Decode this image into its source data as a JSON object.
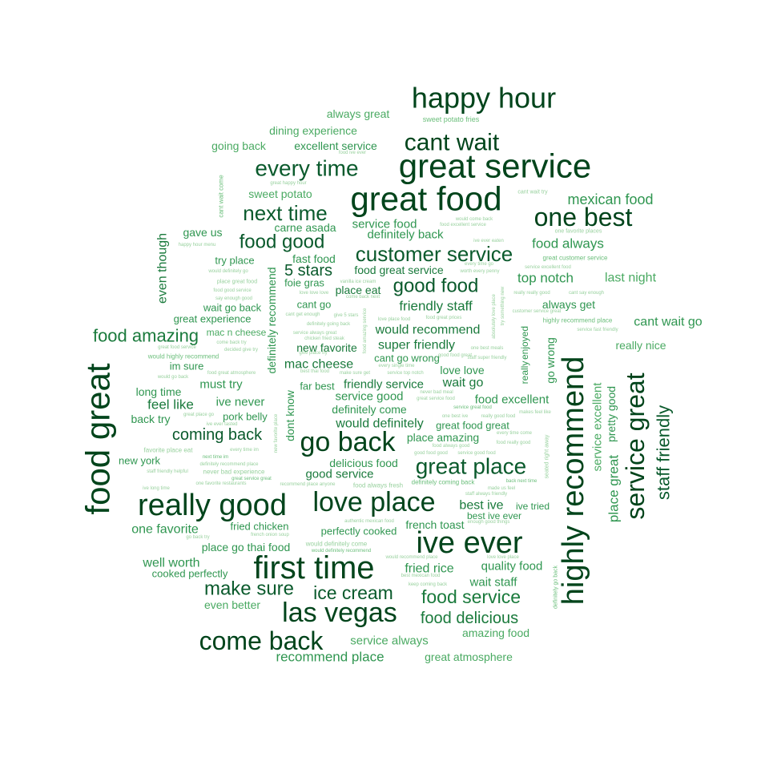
{
  "palette": {
    "level_1": "#00441b",
    "level_2": "#0a5a2c",
    "level_3": "#1a7a3c",
    "level_4": "#2f9650",
    "level_5": "#4aaa62",
    "level_6": "#6cbf7c",
    "level_7": "#98d19e"
  },
  "words": [
    {
      "text": "happy hour",
      "level": 1
    },
    {
      "text": "great service",
      "level": 1
    },
    {
      "text": "great food",
      "level": 1
    },
    {
      "text": "cant wait",
      "level": 1
    },
    {
      "text": "every time",
      "level": 2
    },
    {
      "text": "next time",
      "level": 2
    },
    {
      "text": "one best",
      "level": 1
    },
    {
      "text": "food good",
      "level": 2
    },
    {
      "text": "customer service",
      "level": 2
    },
    {
      "text": "good food",
      "level": 2
    },
    {
      "text": "food great",
      "level": 1
    },
    {
      "text": "really good",
      "level": 1
    },
    {
      "text": "love place",
      "level": 1
    },
    {
      "text": "go back",
      "level": 1
    },
    {
      "text": "great place",
      "level": 2
    },
    {
      "text": "ive ever",
      "level": 1
    },
    {
      "text": "first time",
      "level": 1
    },
    {
      "text": "las vegas",
      "level": 1
    },
    {
      "text": "come back",
      "level": 1
    },
    {
      "text": "highly recommend",
      "level": 1
    },
    {
      "text": "service great",
      "level": 1
    },
    {
      "text": "staff friendly",
      "level": 2
    },
    {
      "text": "place great",
      "level": 4
    },
    {
      "text": "pretty good",
      "level": 4
    },
    {
      "text": "service excellent",
      "level": 5
    },
    {
      "text": "food amazing",
      "level": 3
    },
    {
      "text": "make sure",
      "level": 2
    },
    {
      "text": "ice cream",
      "level": 2
    },
    {
      "text": "food service",
      "level": 3
    },
    {
      "text": "food delicious",
      "level": 3
    },
    {
      "text": "coming back",
      "level": 2
    },
    {
      "text": "5 stars",
      "level": 2
    },
    {
      "text": "mexican food",
      "level": 4
    },
    {
      "text": "food always",
      "level": 4
    },
    {
      "text": "top notch",
      "level": 4
    },
    {
      "text": "last night",
      "level": 5
    },
    {
      "text": "always get",
      "level": 4
    },
    {
      "text": "cant wait go",
      "level": 4
    },
    {
      "text": "really nice",
      "level": 5
    },
    {
      "text": "always great",
      "level": 5
    },
    {
      "text": "dining experience",
      "level": 5
    },
    {
      "text": "going back",
      "level": 5
    },
    {
      "text": "excellent service",
      "level": 4
    },
    {
      "text": "sweet potato",
      "level": 5
    },
    {
      "text": "sweet potato fries",
      "level": 6
    },
    {
      "text": "carne asada",
      "level": 4
    },
    {
      "text": "service food",
      "level": 4
    },
    {
      "text": "definitely back",
      "level": 4
    },
    {
      "text": "gave us",
      "level": 4
    },
    {
      "text": "even though",
      "level": 3
    },
    {
      "text": "try place",
      "level": 4
    },
    {
      "text": "fast food",
      "level": 4
    },
    {
      "text": "foie gras",
      "level": 4
    },
    {
      "text": "food great service",
      "level": 3
    },
    {
      "text": "friendly staff",
      "level": 3
    },
    {
      "text": "wait go back",
      "level": 4
    },
    {
      "text": "cant go",
      "level": 4
    },
    {
      "text": "place eat",
      "level": 3
    },
    {
      "text": "great experience",
      "level": 4
    },
    {
      "text": "would recommend",
      "level": 3
    },
    {
      "text": "mac n cheese",
      "level": 5
    },
    {
      "text": "super friendly",
      "level": 3
    },
    {
      "text": "new favorite",
      "level": 3
    },
    {
      "text": "cant go wrong",
      "level": 4
    },
    {
      "text": "mac cheese",
      "level": 3
    },
    {
      "text": "love love",
      "level": 4
    },
    {
      "text": "im sure",
      "level": 4
    },
    {
      "text": "must try",
      "level": 4
    },
    {
      "text": "far best",
      "level": 4
    },
    {
      "text": "friendly service",
      "level": 3
    },
    {
      "text": "wait go",
      "level": 3
    },
    {
      "text": "long time",
      "level": 4
    },
    {
      "text": "feel like",
      "level": 3
    },
    {
      "text": "ive never",
      "level": 4
    },
    {
      "text": "service good",
      "level": 4
    },
    {
      "text": "food excellent",
      "level": 4
    },
    {
      "text": "back try",
      "level": 4
    },
    {
      "text": "pork belly",
      "level": 4
    },
    {
      "text": "definitely come",
      "level": 4
    },
    {
      "text": "would definitely",
      "level": 3
    },
    {
      "text": "great food great",
      "level": 4
    },
    {
      "text": "place amazing",
      "level": 4
    },
    {
      "text": "new york",
      "level": 4
    },
    {
      "text": "delicious food",
      "level": 4
    },
    {
      "text": "good service",
      "level": 3
    },
    {
      "text": "best ive",
      "level": 3
    },
    {
      "text": "ive tried",
      "level": 4
    },
    {
      "text": "best ive ever",
      "level": 4
    },
    {
      "text": "one favorite",
      "level": 4
    },
    {
      "text": "fried chicken",
      "level": 4
    },
    {
      "text": "perfectly cooked",
      "level": 4
    },
    {
      "text": "french toast",
      "level": 4
    },
    {
      "text": "place go thai food",
      "level": 4
    },
    {
      "text": "well worth",
      "level": 4
    },
    {
      "text": "cooked perfectly",
      "level": 4
    },
    {
      "text": "fried rice",
      "level": 4
    },
    {
      "text": "quality food",
      "level": 4
    },
    {
      "text": "wait staff",
      "level": 4
    },
    {
      "text": "even better",
      "level": 5
    },
    {
      "text": "amazing food",
      "level": 5
    },
    {
      "text": "service always",
      "level": 5
    },
    {
      "text": "recommend place",
      "level": 4
    },
    {
      "text": "great atmosphere",
      "level": 5
    },
    {
      "text": "definitely recommend",
      "level": 4
    },
    {
      "text": "dont know",
      "level": 4
    },
    {
      "text": "enjoyed",
      "level": 4
    },
    {
      "text": "go wrong",
      "level": 4
    },
    {
      "text": "really",
      "level": 4
    },
    {
      "text": "cant wait come",
      "level": 6
    },
    {
      "text": "great happy hour",
      "level": 7
    },
    {
      "text": "food ive ever",
      "level": 7
    },
    {
      "text": "cant wait try",
      "level": 7
    },
    {
      "text": "would come back",
      "level": 7
    },
    {
      "text": "food excellent service",
      "level": 7
    },
    {
      "text": "one favorite places",
      "level": 7
    },
    {
      "text": "ive ever eaten",
      "level": 7
    },
    {
      "text": "happy hour menu",
      "level": 7
    },
    {
      "text": "would definitely go",
      "level": 7
    },
    {
      "text": "place great food",
      "level": 7
    },
    {
      "text": "food good service",
      "level": 7
    },
    {
      "text": "say enough good",
      "level": 7
    },
    {
      "text": "great customer service",
      "level": 6
    },
    {
      "text": "service excellent food",
      "level": 7
    },
    {
      "text": "every time go",
      "level": 7
    },
    {
      "text": "worth every penny",
      "level": 7
    },
    {
      "text": "vanilla ice cream",
      "level": 7
    },
    {
      "text": "love love love",
      "level": 7
    },
    {
      "text": "come back next",
      "level": 7
    },
    {
      "text": "really really good",
      "level": 7
    },
    {
      "text": "cant say enough",
      "level": 7
    },
    {
      "text": "customer service great",
      "level": 7
    },
    {
      "text": "cant get enough",
      "level": 7
    },
    {
      "text": "give 5 stars",
      "level": 7
    },
    {
      "text": "love place food",
      "level": 7
    },
    {
      "text": "food great prices",
      "level": 7
    },
    {
      "text": "highly recommend place",
      "level": 6
    },
    {
      "text": "service fast friendly",
      "level": 7
    },
    {
      "text": "definitely going back",
      "level": 7
    },
    {
      "text": "service always great",
      "level": 7
    },
    {
      "text": "chicken fried steak",
      "level": 7
    },
    {
      "text": "come back try",
      "level": 7
    },
    {
      "text": "decided give try",
      "level": 7
    },
    {
      "text": "give place try",
      "level": 7
    },
    {
      "text": "one best meals",
      "level": 7
    },
    {
      "text": "great food service",
      "level": 7
    },
    {
      "text": "staff super friendly",
      "level": 7
    },
    {
      "text": "would highly recommend",
      "level": 6
    },
    {
      "text": "good food great",
      "level": 7
    },
    {
      "text": "would go back",
      "level": 7
    },
    {
      "text": "food great atmosphere",
      "level": 7
    },
    {
      "text": "every single time",
      "level": 7
    },
    {
      "text": "best thai food",
      "level": 7
    },
    {
      "text": "make sure get",
      "level": 7
    },
    {
      "text": "service top notch",
      "level": 7
    },
    {
      "text": "never bad meal",
      "level": 7
    },
    {
      "text": "great service food",
      "level": 7
    },
    {
      "text": "great place go",
      "level": 7
    },
    {
      "text": "ive ever tasted",
      "level": 7
    },
    {
      "text": "service great food",
      "level": 6
    },
    {
      "text": "one best ive",
      "level": 7
    },
    {
      "text": "really good food",
      "level": 7
    },
    {
      "text": "makes feel like",
      "level": 7
    },
    {
      "text": "every time come",
      "level": 7
    },
    {
      "text": "food really good",
      "level": 7
    },
    {
      "text": "every time im",
      "level": 7
    },
    {
      "text": "food always good",
      "level": 7
    },
    {
      "text": "good food good",
      "level": 7
    },
    {
      "text": "service good food",
      "level": 7
    },
    {
      "text": "favorite place eat",
      "level": 7
    },
    {
      "text": "next time im",
      "level": 6
    },
    {
      "text": "definitely recommend place",
      "level": 7
    },
    {
      "text": "staff friendly helpful",
      "level": 7
    },
    {
      "text": "never bad experience",
      "level": 7
    },
    {
      "text": "great service great",
      "level": 6
    },
    {
      "text": "one favorite restaurants",
      "level": 7
    },
    {
      "text": "recommend place anyone",
      "level": 7
    },
    {
      "text": "food always fresh",
      "level": 7
    },
    {
      "text": "definitely coming back",
      "level": 6
    },
    {
      "text": "back next time",
      "level": 6
    },
    {
      "text": "made us feel",
      "level": 7
    },
    {
      "text": "staff always friendly",
      "level": 7
    },
    {
      "text": "ive long time",
      "level": 7
    },
    {
      "text": "authentic mexican food",
      "level": 7
    },
    {
      "text": "enough good things",
      "level": 7
    },
    {
      "text": "go back try",
      "level": 7
    },
    {
      "text": "french onion soup",
      "level": 7
    },
    {
      "text": "would definitely come",
      "level": 7
    },
    {
      "text": "would definitely recommend",
      "level": 6
    },
    {
      "text": "would recommend place",
      "level": 7
    },
    {
      "text": "love love place",
      "level": 7
    },
    {
      "text": "best mexican food",
      "level": 7
    },
    {
      "text": "keep coming back",
      "level": 7
    },
    {
      "text": "new favorite place",
      "level": 7
    },
    {
      "text": "food amazing service",
      "level": 7
    },
    {
      "text": "absolutely love place",
      "level": 7
    },
    {
      "text": "try something new",
      "level": 7
    },
    {
      "text": "seated right away",
      "level": 7
    },
    {
      "text": "definitely go back",
      "level": 6
    },
    {
      "text": "wait come back",
      "level": 6
    }
  ]
}
